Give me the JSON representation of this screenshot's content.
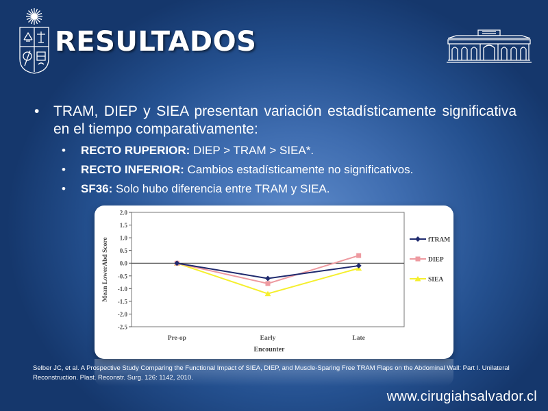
{
  "header": {
    "title": "RESULTADOS"
  },
  "content": {
    "main_bullet": "TRAM, DIEP y SIEA presentan variación estadísticamente significativa en el tiempo comparativamente:",
    "sub_bullets": [
      {
        "label": "RECTO RUPERIOR:",
        "text": " DIEP > TRAM > SIEA*."
      },
      {
        "label": "RECTO INFERIOR:",
        "text": " Cambios estadísticamente no significativos."
      },
      {
        "label": "SF36:",
        "text": " Solo hubo diferencia entre TRAM y SIEA."
      }
    ]
  },
  "chart_data": {
    "type": "line",
    "x": [
      "Pre-op",
      "Early",
      "Late"
    ],
    "xlabel": "Encounter",
    "ylabel": "Mean LowerAbd Score",
    "ylim": [
      -2.5,
      2.0
    ],
    "yticks": [
      "2.0",
      "1.5",
      "1.0",
      "0.5",
      "0.0",
      "-0.5",
      "-1.0",
      "-1.5",
      "-2.0",
      "-2.5"
    ],
    "legend_position": "right",
    "series": [
      {
        "name": "fTRAM",
        "values": [
          0.0,
          -0.6,
          -0.1
        ],
        "color": "#1f2a6e",
        "marker": "diamond"
      },
      {
        "name": "DIEP",
        "values": [
          0.0,
          -0.8,
          0.3
        ],
        "color": "#ee9aa0",
        "marker": "square"
      },
      {
        "name": "SIEA",
        "values": [
          0.0,
          -1.2,
          -0.2
        ],
        "color": "#f5ef2e",
        "marker": "triangle"
      }
    ]
  },
  "citation": "Selber JC, et al. A Prospective Study Comparing the Functional Impact of SIEA, DIEP, and Muscle-Sparing Free TRAM Flaps on the Abdominal Wall: Part I. Unilateral Reconstruction. Plast. Reconstr. Surg. 126: 1142, 2010.",
  "footer": {
    "website": "www.cirugiahsalvador.cl"
  },
  "icons": {
    "left_logo": "university-crest-icon",
    "right_logo": "hospital-building-icon"
  },
  "colors": {
    "background": "#3f6db0",
    "text": "#ffffff"
  }
}
